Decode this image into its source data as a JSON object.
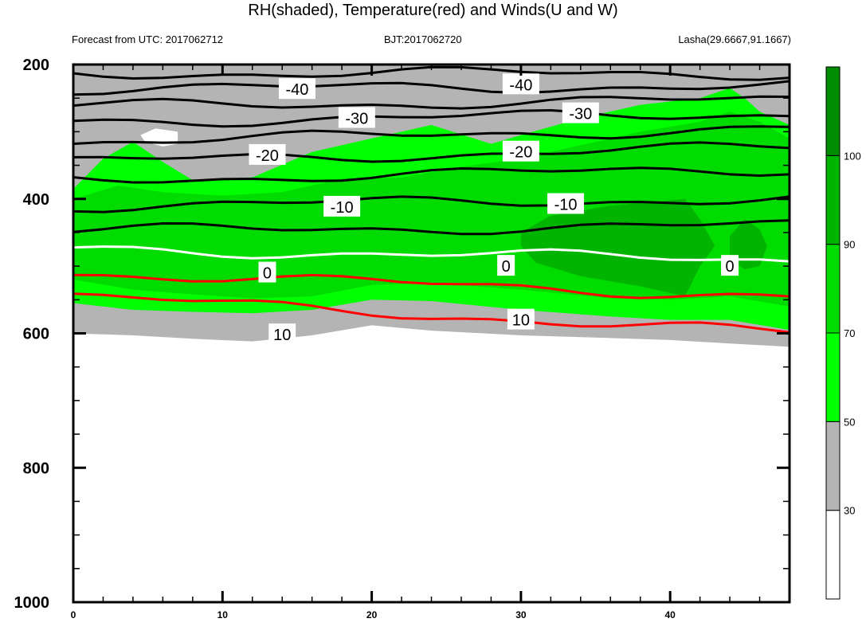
{
  "title": "RH(shaded), Temperature(red) and Winds(U and W)",
  "forecast_label": "Forecast from UTC: 2017062712",
  "bjt_label": "BJT:2017062720",
  "location_label": "Lasha(29.6667,91.1667)",
  "colors": {
    "rh_below_30": "#ffffff",
    "rh_30_50": "#b4b4b4",
    "rh_50_70": "#00ff00",
    "rh_70_90": "#00dc00",
    "rh_90_100": "#00b400",
    "rh_above_100": "#008c00",
    "temperature": "#ff0000",
    "zero_isotherm": "#ffffff",
    "negative_isotherms": "#000000"
  },
  "chart_data": {
    "type": "contour",
    "title": "RH(shaded), Temperature(red) and Winds(U and W)",
    "xlim": [
      0,
      48
    ],
    "ylim": [
      1000,
      200
    ],
    "x_ticks": [
      0,
      10,
      20,
      30,
      40
    ],
    "y_ticks": [
      200,
      400,
      600,
      800,
      1000
    ],
    "colorbar": {
      "levels": [
        30,
        50,
        70,
        90,
        100
      ],
      "labels": [
        "30",
        "50",
        "70",
        "90",
        "100"
      ]
    },
    "isotherms": [
      {
        "label": "-40",
        "x": [
          0,
          48
        ],
        "y": [
          213,
          213
        ]
      },
      {
        "label": "-40",
        "x": [
          0,
          48
        ],
        "y": [
          236,
          232
        ]
      },
      {
        "label": "-30",
        "x": [
          0,
          48
        ],
        "y": [
          262,
          253
        ]
      },
      {
        "label": "-30",
        "x": [
          0,
          48
        ],
        "y": [
          285,
          273
        ]
      },
      {
        "label": "-20",
        "x": [
          0,
          48
        ],
        "y": [
          315,
          295
        ]
      },
      {
        "label": "-20",
        "x": [
          0,
          48
        ],
        "y": [
          345,
          323
        ]
      },
      {
        "label": "-10",
        "x": [
          0,
          48
        ],
        "y": [
          372,
          355
        ]
      },
      {
        "label": "-10",
        "x": [
          0,
          48
        ],
        "y": [
          410,
          400
        ]
      },
      {
        "label": "",
        "x": [
          0,
          48
        ],
        "y": [
          447,
          440
        ]
      },
      {
        "label": "0",
        "x": [
          0,
          48
        ],
        "y": [
          475,
          490
        ]
      },
      {
        "label": "10",
        "x": [
          0,
          48
        ],
        "y": [
          510,
          545
        ]
      },
      {
        "label": "10",
        "x": [
          0,
          48
        ],
        "y": [
          545,
          600
        ]
      }
    ],
    "contour_labels": [
      {
        "text": "-40",
        "x": 15,
        "y": 237
      },
      {
        "text": "-40",
        "x": 30,
        "y": 230
      },
      {
        "text": "-30",
        "x": 19,
        "y": 280
      },
      {
        "text": "-30",
        "x": 34,
        "y": 273
      },
      {
        "text": "-20",
        "x": 13,
        "y": 335
      },
      {
        "text": "-20",
        "x": 30,
        "y": 330
      },
      {
        "text": "-10",
        "x": 18,
        "y": 412
      },
      {
        "text": "-10",
        "x": 33,
        "y": 408
      },
      {
        "text": "0",
        "x": 13,
        "y": 510
      },
      {
        "text": "0",
        "x": 29,
        "y": 500
      },
      {
        "text": "0",
        "x": 44,
        "y": 500
      },
      {
        "text": "10",
        "x": 14,
        "y": 602
      },
      {
        "text": "10",
        "x": 30,
        "y": 580
      }
    ]
  }
}
